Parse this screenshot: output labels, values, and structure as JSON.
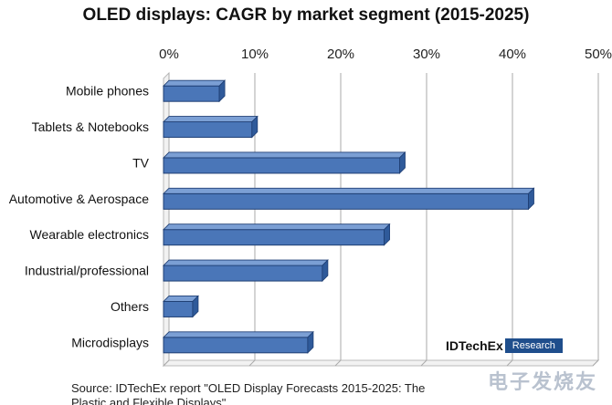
{
  "chart_data": {
    "type": "bar",
    "orientation": "horizontal",
    "title": "OLED displays: CAGR by market segment (2015-2025)",
    "xlabel": "",
    "ylabel": "",
    "xlim": [
      0,
      50
    ],
    "x_tick_labels": [
      "0%",
      "10%",
      "20%",
      "30%",
      "40%",
      "50%"
    ],
    "grid": true,
    "categories": [
      "Mobile phones",
      "Tablets & Notebooks",
      "TV",
      "Automotive & Aerospace",
      "Wearable electronics",
      "Industrial/professional",
      "Others",
      "Microdisplays"
    ],
    "values": [
      6.5,
      10.3,
      27.5,
      42.5,
      25.7,
      18.5,
      3.4,
      16.8
    ],
    "bar_color": "#4a76b8",
    "bar_edge": "#1f3f74"
  },
  "source": {
    "line1": "Source: IDTechEx report \"OLED Display Forecasts 2015-2025: The",
    "line2": "Plastic and Flexible Displays\""
  },
  "logo": {
    "text": "IDTechEx",
    "badge": "Research"
  },
  "watermark": {
    "text": "电子发烧友"
  }
}
